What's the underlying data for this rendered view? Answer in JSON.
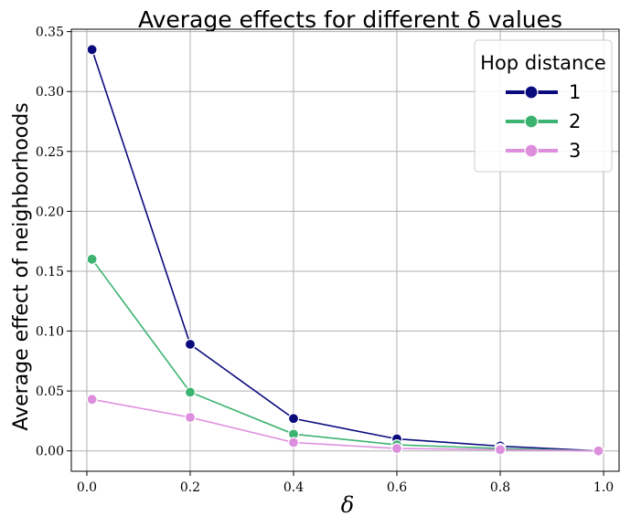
{
  "chart_data": {
    "type": "line",
    "title": "Average effects for different δ values",
    "xlabel": "δ",
    "ylabel": "Average effect of neighborhoods",
    "xlim": [
      -0.03,
      1.03
    ],
    "ylim": [
      -0.017,
      0.352
    ],
    "xticks": [
      0.0,
      0.2,
      0.4,
      0.6,
      0.8,
      1.0
    ],
    "xtick_labels": [
      "0.0",
      "0.2",
      "0.4",
      "0.6",
      "0.8",
      "1.0"
    ],
    "yticks": [
      0.0,
      0.05,
      0.1,
      0.15,
      0.2,
      0.25,
      0.3,
      0.35
    ],
    "ytick_labels": [
      "0.00",
      "0.05",
      "0.10",
      "0.15",
      "0.20",
      "0.25",
      "0.30",
      "0.35"
    ],
    "grid": true,
    "legend": {
      "title": "Hop distance",
      "placement": "top-right"
    },
    "x": [
      0.01,
      0.2,
      0.4,
      0.6,
      0.8,
      0.99
    ],
    "series": [
      {
        "name": "1",
        "color": "#0a0a7d",
        "values": [
          0.335,
          0.089,
          0.027,
          0.01,
          0.004,
          0.0
        ]
      },
      {
        "name": "2",
        "color": "#3cb371",
        "values": [
          0.16,
          0.049,
          0.014,
          0.005,
          0.002,
          0.0
        ]
      },
      {
        "name": "3",
        "color": "#dd8fdd",
        "values": [
          0.043,
          0.028,
          0.007,
          0.002,
          0.001,
          0.0
        ]
      }
    ]
  }
}
